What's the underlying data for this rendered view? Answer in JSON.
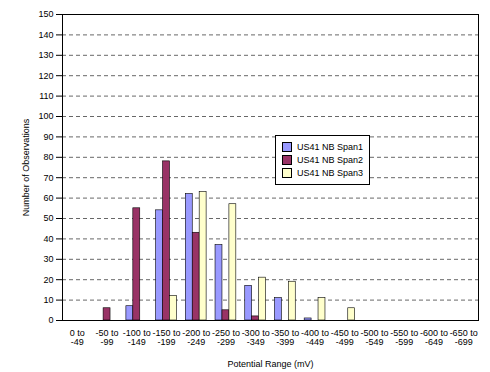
{
  "chart_data": {
    "type": "bar",
    "x_label": "Potential Range (mV)",
    "y_label": "Number of Observations",
    "categories": [
      "0 to -49",
      "-50 to -99",
      "-100 to -149",
      "-150 to -199",
      "-200 to -249",
      "-250 to -299",
      "-300 to -349",
      "-350 to -399",
      "-400 to -449",
      "-450 to -499",
      "-500 to -549",
      "-550 to -599",
      "-600 to -649",
      "-650 to -699"
    ],
    "series": [
      {
        "name": "US41 NB Span1",
        "color": "#9999ff",
        "values": [
          0,
          0,
          7,
          54,
          62,
          37,
          17,
          11,
          1,
          0,
          0,
          0,
          0,
          0
        ]
      },
      {
        "name": "US41 NB Span2",
        "color": "#993366",
        "values": [
          0,
          6,
          55,
          78,
          43,
          5,
          2,
          0,
          0,
          0,
          0,
          0,
          0,
          0
        ]
      },
      {
        "name": "US41 NB Span3",
        "color": "#ffffcc",
        "values": [
          0,
          0,
          0,
          12,
          63,
          57,
          21,
          19,
          11,
          6,
          0,
          0,
          0,
          0
        ]
      }
    ],
    "ylim": [
      0,
      150
    ],
    "yticks": [
      0,
      10,
      20,
      30,
      40,
      50,
      60,
      70,
      80,
      90,
      100,
      110,
      120,
      130,
      140,
      150
    ],
    "grid": true,
    "legend": "right"
  }
}
